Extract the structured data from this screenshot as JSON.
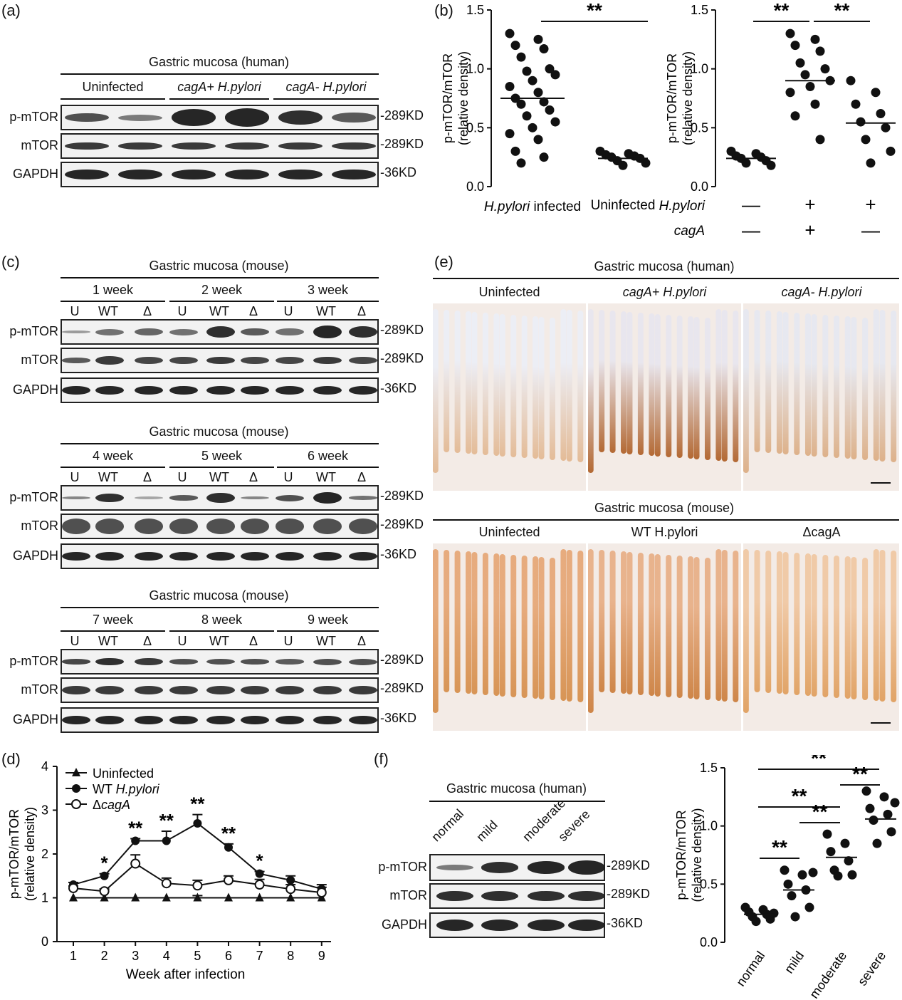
{
  "panels": {
    "a": "(a)",
    "b": "(b)",
    "c": "(c)",
    "d": "(d)",
    "e": "(e)",
    "f": "(f)"
  },
  "a": {
    "title": "Gastric mucosa (human)",
    "groups": [
      "Uninfected",
      "cagA+ H.pylori",
      "cagA- H.pylori"
    ],
    "rows": [
      "p-mTOR",
      "mTOR",
      "GAPDH"
    ],
    "kd": [
      "-289KD",
      "-289KD",
      "-36KD"
    ]
  },
  "c": {
    "title": "Gastric mucosa (mouse)",
    "blocks": [
      {
        "weeks": [
          "1 week",
          "2 week",
          "3 week"
        ]
      },
      {
        "weeks": [
          "4 week",
          "5 week",
          "6 week"
        ]
      },
      {
        "weeks": [
          "7 week",
          "8 week",
          "9 week"
        ]
      }
    ],
    "lanes": [
      "U",
      "WT",
      "Δ"
    ],
    "rows": [
      "p-mTOR",
      "mTOR",
      "GAPDH"
    ],
    "kd": [
      "-289KD",
      "-289KD",
      "-36KD"
    ]
  },
  "e": {
    "human_title": "Gastric mucosa (human)",
    "human_cols": [
      "Uninfected",
      "cagA+ H.pylori",
      "cagA- H.pylori"
    ],
    "mouse_title": "Gastric mucosa (mouse)",
    "mouse_cols": [
      "Uninfected",
      "WT H.pylori",
      "ΔcagA"
    ]
  },
  "f": {
    "title": "Gastric mucosa (human)",
    "lanes": [
      "normal",
      "mild",
      "moderate",
      "severe"
    ],
    "rows": [
      "p-mTOR",
      "mTOR",
      "GAPDH"
    ],
    "kd": [
      "-289KD",
      "-289KD",
      "-36KD"
    ]
  },
  "chart_data": [
    {
      "id": "b-left",
      "type": "scatter",
      "ylabel": "p-mTOR/mTOR\n(relative density)",
      "ylim": [
        0,
        1.5
      ],
      "yticks": [
        "0.0",
        "0.5",
        "1.0",
        "1.5"
      ],
      "categories": [
        "H.pylori infected",
        "Uninfected"
      ],
      "points": [
        [
          1.3,
          1.25,
          1.2,
          1.17,
          1.1,
          1.0,
          0.98,
          0.95,
          0.9,
          0.85,
          0.8,
          0.75,
          0.72,
          0.7,
          0.65,
          0.6,
          0.55,
          0.5,
          0.45,
          0.4,
          0.3,
          0.25,
          0.2
        ],
        [
          0.3,
          0.28,
          0.27,
          0.26,
          0.25,
          0.24,
          0.22,
          0.2,
          0.18
        ]
      ],
      "means": [
        0.75,
        0.24
      ],
      "significance": [
        "**"
      ]
    },
    {
      "id": "b-right",
      "type": "scatter",
      "ylabel": "p-mTOR/mTOR\n(relative density)",
      "ylim": [
        0,
        1.5
      ],
      "yticks": [
        "0.0",
        "0.5",
        "1.0",
        "1.5"
      ],
      "row_labels": [
        "H.pylori",
        "cagA"
      ],
      "hpylori": [
        "—",
        "+",
        "+"
      ],
      "cagA": [
        "—",
        "+",
        "—"
      ],
      "points": [
        [
          0.3,
          0.28,
          0.26,
          0.25,
          0.24,
          0.22,
          0.2,
          0.18
        ],
        [
          1.3,
          1.25,
          1.2,
          1.15,
          1.05,
          1.0,
          0.95,
          0.9,
          0.85,
          0.8,
          0.7,
          0.6,
          0.4
        ],
        [
          0.9,
          0.8,
          0.7,
          0.62,
          0.55,
          0.5,
          0.4,
          0.3,
          0.2
        ]
      ],
      "means": [
        0.24,
        0.9,
        0.54
      ],
      "significance": [
        "**",
        "**"
      ]
    },
    {
      "id": "d",
      "type": "line",
      "xlabel": "Week after infection",
      "ylabel": "p-mTOR/mTOR\n(relative density)",
      "x": [
        1,
        2,
        3,
        4,
        5,
        6,
        7,
        8,
        9
      ],
      "ylim": [
        0,
        4
      ],
      "yticks": [
        "0",
        "1",
        "2",
        "3",
        "4"
      ],
      "series": [
        {
          "name": "Uninfected",
          "values": [
            1,
            1,
            1,
            1,
            1,
            1,
            1,
            1,
            1
          ],
          "err": [
            0,
            0,
            0,
            0,
            0.05,
            0,
            0,
            0,
            0
          ]
        },
        {
          "name": "WT H.pylori",
          "values": [
            1.3,
            1.5,
            2.3,
            2.3,
            2.7,
            2.15,
            1.55,
            1.4,
            1.2
          ],
          "err": [
            0.05,
            0.05,
            0.05,
            0.22,
            0.2,
            0.08,
            0.05,
            0.1,
            0.1
          ]
        },
        {
          "name": "ΔcagA",
          "values": [
            1.22,
            1.15,
            1.78,
            1.33,
            1.28,
            1.4,
            1.3,
            1.2,
            1.12
          ],
          "err": [
            0.05,
            0.05,
            0.2,
            0.12,
            0.12,
            0.1,
            0.12,
            0.1,
            0.12
          ]
        }
      ],
      "significance": [
        "",
        "*",
        "**",
        "**",
        "**",
        "**",
        "*",
        "",
        ""
      ]
    },
    {
      "id": "f-right",
      "type": "scatter",
      "ylabel": "p-mTOR/mTOR\n(relative density)",
      "ylim": [
        0,
        1.5
      ],
      "yticks": [
        "0.0",
        "0.5",
        "1.0",
        "1.5"
      ],
      "categories": [
        "normal",
        "mild",
        "moderate",
        "severe"
      ],
      "points": [
        [
          0.3,
          0.28,
          0.26,
          0.24,
          0.22,
          0.2,
          0.18,
          0.25
        ],
        [
          0.62,
          0.58,
          0.5,
          0.45,
          0.4,
          0.3,
          0.22,
          0.6
        ],
        [
          0.93,
          0.85,
          0.78,
          0.7,
          0.62,
          0.58,
          0.57
        ],
        [
          1.3,
          1.25,
          1.15,
          1.1,
          1.05,
          0.95,
          0.85,
          1.2
        ]
      ],
      "means": [
        0.24,
        0.45,
        0.73,
        1.06
      ],
      "significance": [
        "**",
        "**",
        "**",
        "**",
        "**"
      ]
    }
  ]
}
